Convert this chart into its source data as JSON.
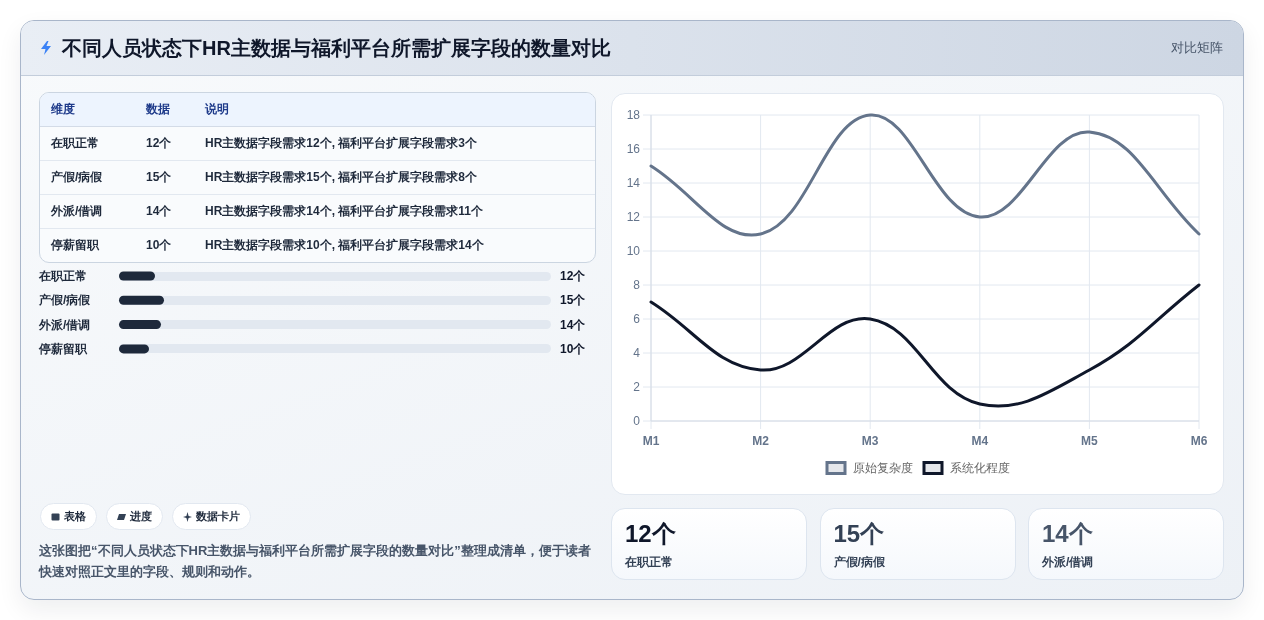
{
  "chart_data": [
    {
      "type": "other",
      "title": "不同人员状态下HR主数据与福利平台所需扩展字段的数量对比",
      "subtitle": "对比矩阵",
      "categories": [
        "在职正常",
        "产假/病假",
        "外派/借调",
        "停薪留职"
      ],
      "annotations": [
        "维度",
        "数据",
        "说明",
        "12个",
        "HR主数据字段需求12个, 福利平台扩展字段需求3个",
        "15个",
        "HR主数据字段需求15个, 福利平台扩展字段需求8个",
        "14个",
        "HR主数据字段需求14个, 福利平台扩展字段需求11个",
        "10个",
        "HR主数据字段需求10个, 福利平台扩展字段需求14个"
      ]
    },
    {
      "type": "bar",
      "orientation": "horizontal",
      "categories": [
        "在职正常",
        "产假/病假",
        "外派/借调",
        "停薪留职"
      ],
      "values": [
        12,
        15,
        14,
        10
      ],
      "value_labels": [
        "12个",
        "15个",
        "14个",
        "10个"
      ],
      "color": "#1e293b"
    },
    {
      "type": "line",
      "categories": [
        "M1",
        "M2",
        "M3",
        "M4",
        "M5",
        "M6"
      ],
      "series": [
        {
          "name": "原始复杂度",
          "color": "#64748b",
          "values": [
            15,
            11,
            18,
            12,
            17,
            11
          ]
        },
        {
          "name": "系统化程度",
          "color": "#0f172a",
          "values": [
            7,
            3,
            6,
            1,
            3,
            8
          ]
        }
      ],
      "ylim": [
        0,
        18
      ],
      "yticks": [
        0,
        2,
        4,
        6,
        8,
        10,
        12,
        14,
        16,
        18
      ],
      "grid": true,
      "legend": "bottom"
    },
    {
      "type": "other",
      "categories": [
        "在职正常",
        "产假/病假",
        "外派/借调"
      ],
      "annotations": [
        "12个",
        "15个",
        "14个"
      ]
    },
    {
      "type": "other",
      "categories": [
        "表格",
        "进度",
        "数据卡片"
      ],
      "annotations": [
        "这张图把“不同人员状态下HR主数据与福利平台所需扩展字段的数量对比”整理成清单，便于读者快速对照正文里的字段、规则和动作。"
      ]
    }
  ]
}
